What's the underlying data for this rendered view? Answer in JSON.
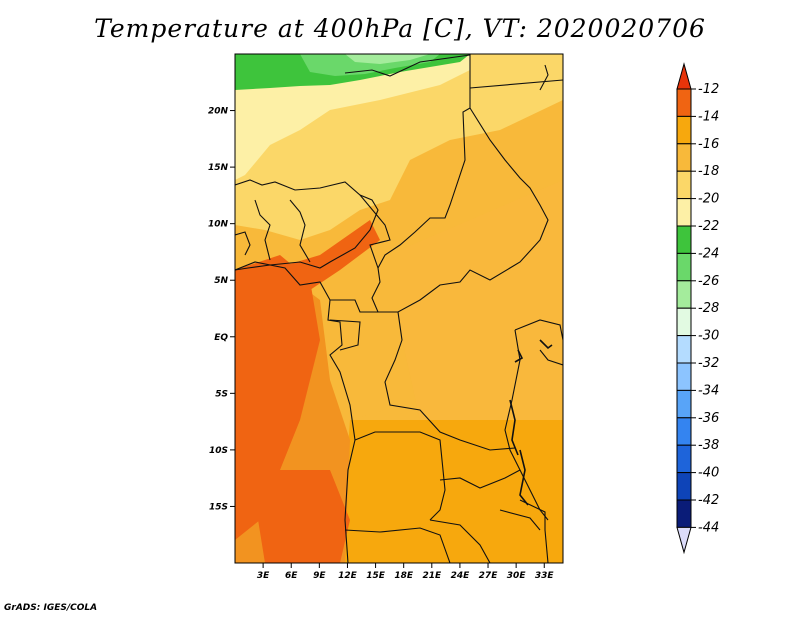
{
  "title": "Temperature at 400hPa [C], VT: 2020020706",
  "footer": "GrADS: IGES/COLA",
  "map": {
    "lat_range": [
      -20,
      25
    ],
    "lon_range": [
      0,
      35
    ],
    "lat_ticks": [
      {
        "value": 20,
        "label": "20N"
      },
      {
        "value": 15,
        "label": "15N"
      },
      {
        "value": 10,
        "label": "10N"
      },
      {
        "value": 5,
        "label": "5N"
      },
      {
        "value": 0,
        "label": "EQ"
      },
      {
        "value": -5,
        "label": "5S"
      },
      {
        "value": -10,
        "label": "10S"
      },
      {
        "value": -15,
        "label": "15S"
      }
    ],
    "lon_ticks": [
      {
        "value": 3,
        "label": "3E"
      },
      {
        "value": 6,
        "label": "6E"
      },
      {
        "value": 9,
        "label": "9E"
      },
      {
        "value": 12,
        "label": "12E"
      },
      {
        "value": 15,
        "label": "15E"
      },
      {
        "value": 18,
        "label": "18E"
      },
      {
        "value": 21,
        "label": "21E"
      },
      {
        "value": 24,
        "label": "24E"
      },
      {
        "value": 27,
        "label": "27E"
      },
      {
        "value": 30,
        "label": "30E"
      },
      {
        "value": 33,
        "label": "33E"
      }
    ]
  },
  "colorbar": {
    "labels": [
      "-12",
      "-14",
      "-16",
      "-18",
      "-20",
      "-22",
      "-24",
      "-26",
      "-28",
      "-30",
      "-32",
      "-34",
      "-36",
      "-38",
      "-40",
      "-42",
      "-44"
    ],
    "colors": [
      "#e8340a",
      "#f06412",
      "#f7a80d",
      "#f8b93a",
      "#fbd768",
      "#fdf0a6",
      "#3ec43c",
      "#6ad86a",
      "#a4ec9c",
      "#e2fae2",
      "#b4dcff",
      "#8cc4ff",
      "#58a4f8",
      "#3484f0",
      "#1e64da",
      "#0e44b8",
      "#0a1c78",
      "#dcdcfa"
    ],
    "top_arrow_color": "#e8340a",
    "bottom_arrow_color": "#dcdcfa"
  }
}
